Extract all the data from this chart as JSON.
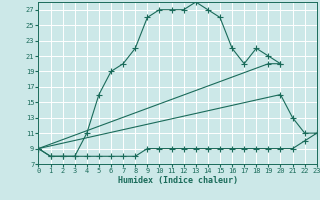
{
  "xlabel": "Humidex (Indice chaleur)",
  "bg_color": "#cce8e8",
  "grid_color": "#ffffff",
  "line_color": "#1a6b5a",
  "line1_x": [
    0,
    1,
    2,
    3,
    4,
    5,
    6,
    7,
    8,
    9,
    10,
    11,
    12,
    13,
    14,
    15,
    16,
    17,
    18,
    19,
    20
  ],
  "line1_y": [
    9,
    8,
    8,
    8,
    11,
    16,
    19,
    20,
    22,
    26,
    27,
    27,
    27,
    28,
    27,
    26,
    22,
    20,
    22,
    21,
    20
  ],
  "line2_x": [
    0,
    19,
    20
  ],
  "line2_y": [
    9,
    20,
    20
  ],
  "line3_x": [
    0,
    20,
    21,
    22,
    23
  ],
  "line3_y": [
    9,
    16,
    13,
    11,
    11
  ],
  "line4_x": [
    0,
    1,
    2,
    3,
    4,
    5,
    6,
    7,
    8,
    9,
    10,
    11,
    12,
    13,
    14,
    15,
    16,
    17,
    18,
    19,
    20,
    21,
    22,
    23
  ],
  "line4_y": [
    9,
    8,
    8,
    8,
    8,
    8,
    8,
    8,
    8,
    9,
    9,
    9,
    9,
    9,
    9,
    9,
    9,
    9,
    9,
    9,
    9,
    9,
    10,
    11
  ],
  "xmin": 0,
  "xmax": 23,
  "ymin": 7,
  "ymax": 28,
  "yticks": [
    7,
    9,
    11,
    13,
    15,
    17,
    19,
    21,
    23,
    25,
    27
  ],
  "xticks": [
    0,
    1,
    2,
    3,
    4,
    5,
    6,
    7,
    8,
    9,
    10,
    11,
    12,
    13,
    14,
    15,
    16,
    17,
    18,
    19,
    20,
    21,
    22,
    23
  ],
  "tick_fontsize": 5.0,
  "xlabel_fontsize": 6.0,
  "lw": 0.8,
  "ms": 2.5
}
